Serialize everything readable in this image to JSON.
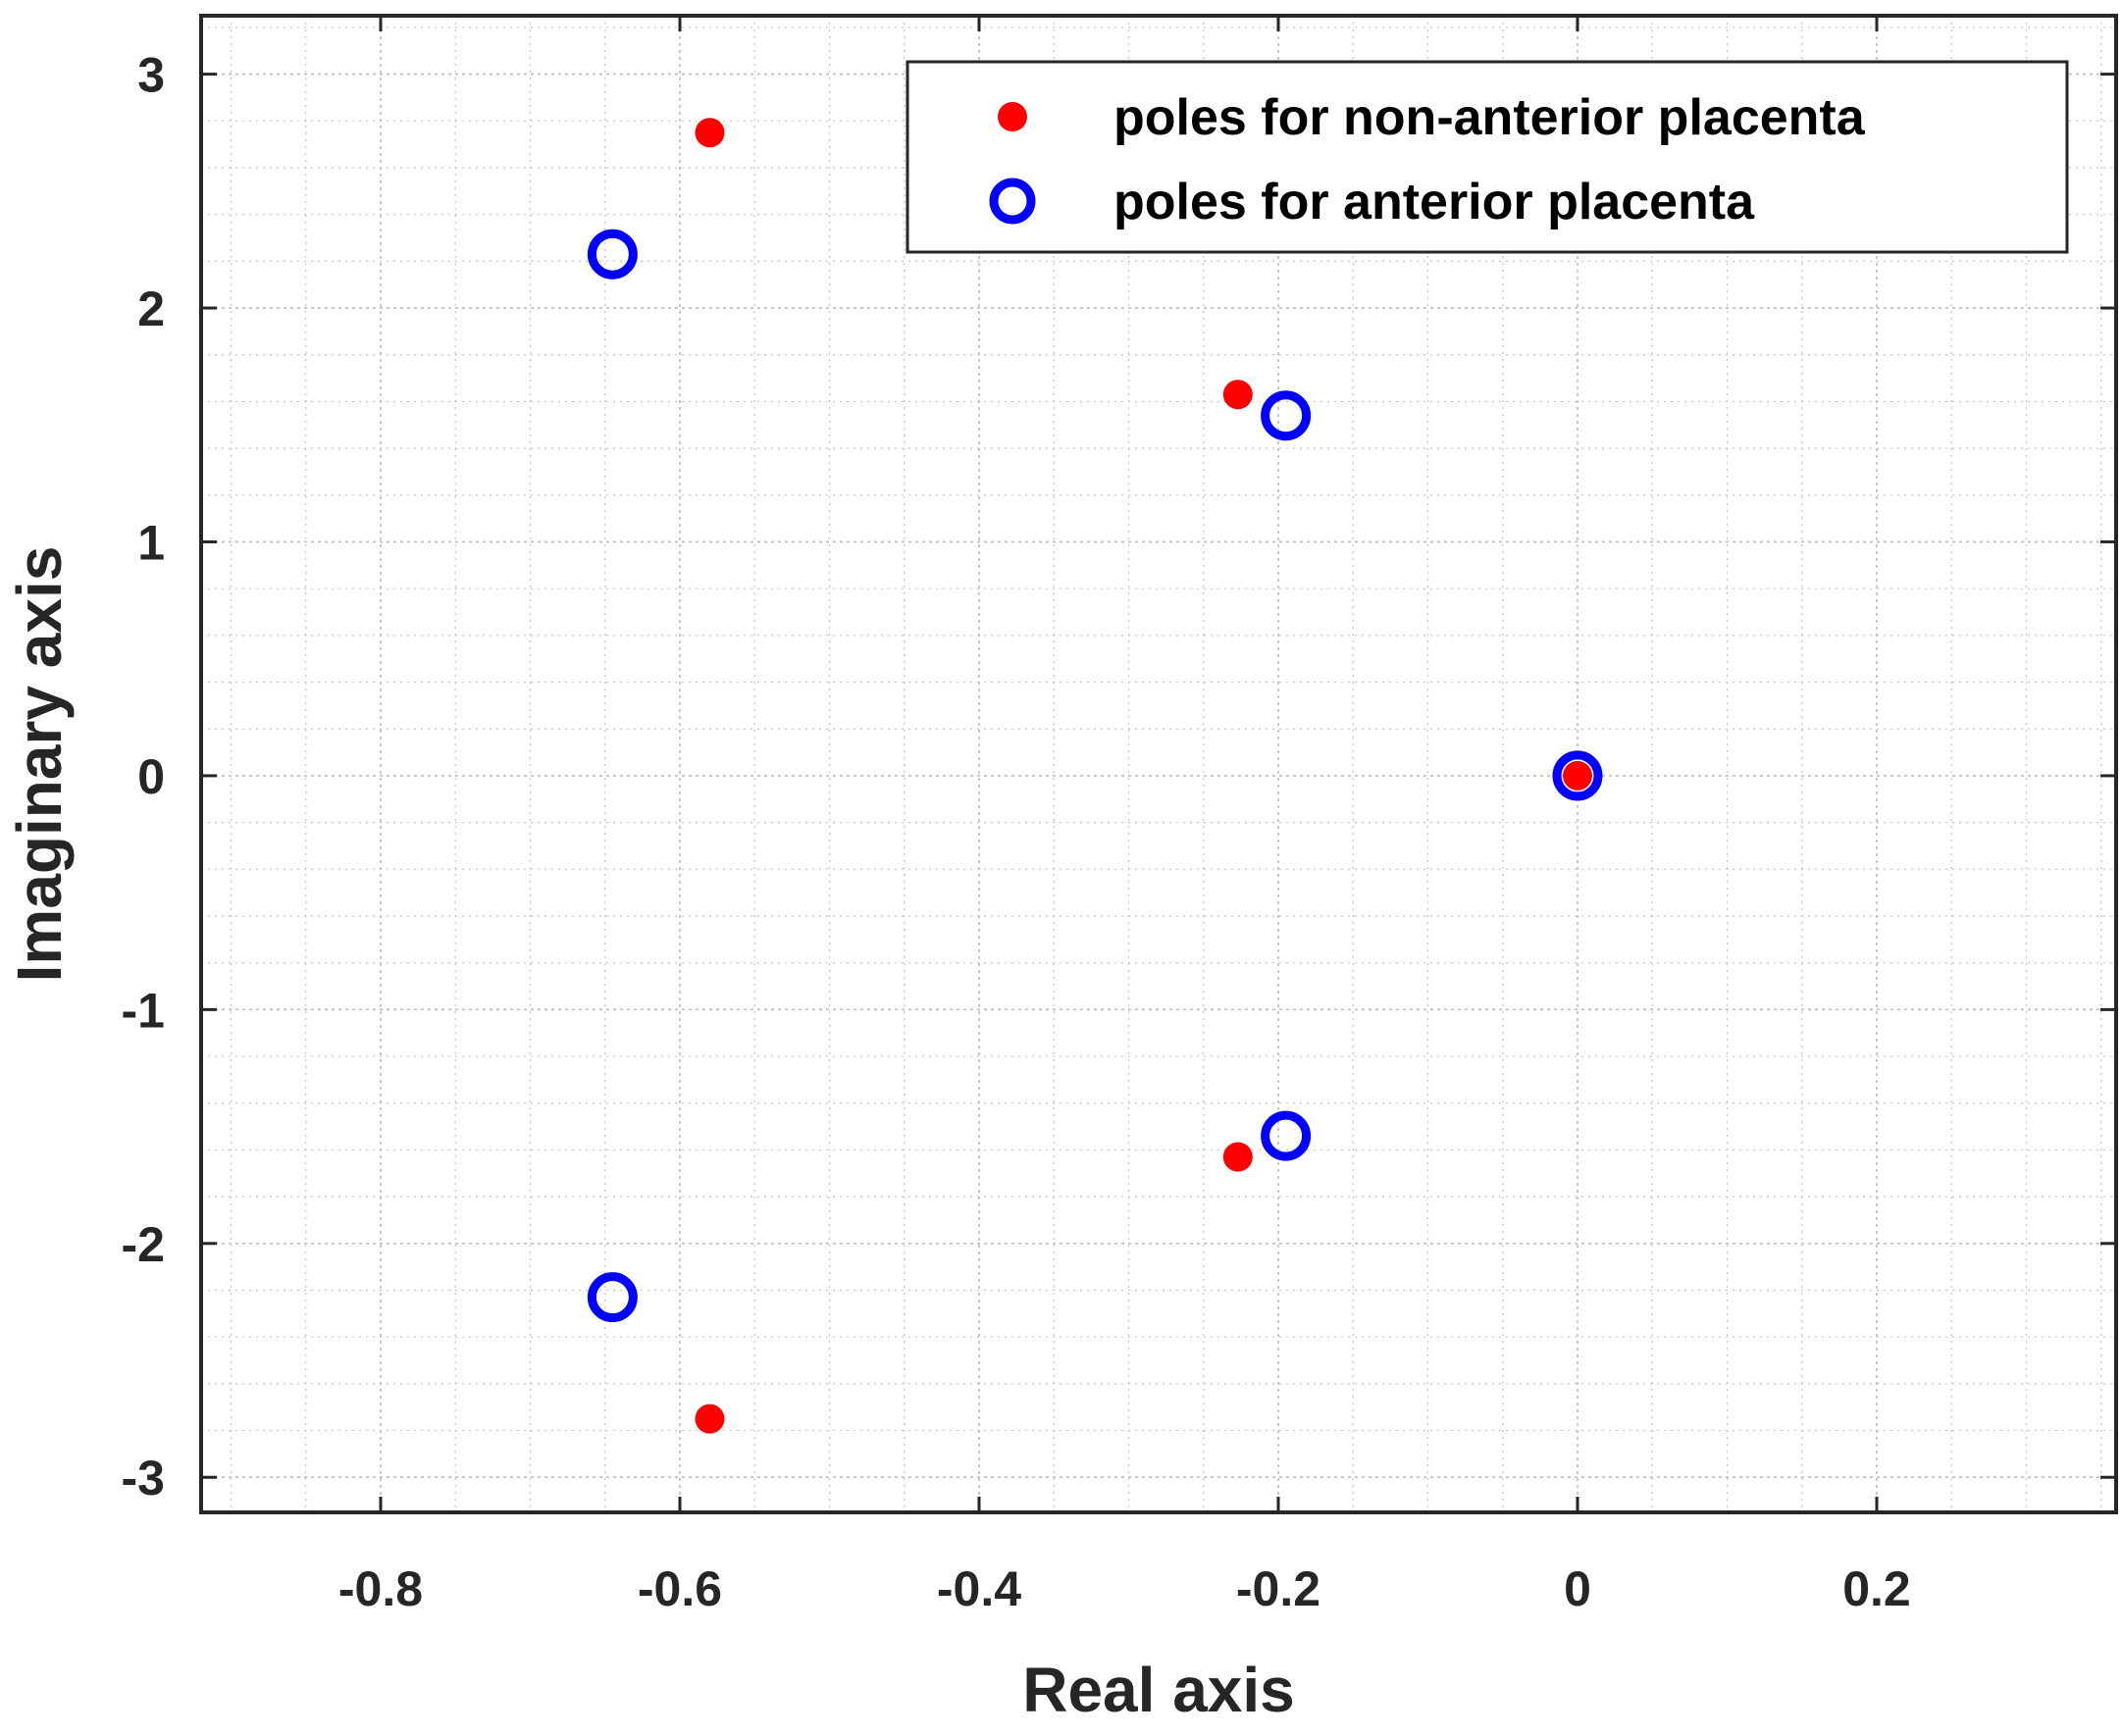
{
  "chart_data": {
    "type": "scatter",
    "title": "",
    "xlabel": "Real axis",
    "ylabel": "Imaginary axis",
    "xlim": [
      -0.92,
      0.36
    ],
    "ylim": [
      -3.15,
      3.25
    ],
    "xticks": [
      -0.8,
      -0.6,
      -0.4,
      -0.2,
      0,
      0.2
    ],
    "xtick_labels": [
      "-0.8",
      "-0.6",
      "-0.4",
      "-0.2",
      "0",
      "0.2"
    ],
    "yticks": [
      -3,
      -2,
      -1,
      0,
      1,
      2,
      3
    ],
    "ytick_labels": [
      "-3",
      "-2",
      "-1",
      "0",
      "1",
      "2",
      "3"
    ],
    "grid": true,
    "minor_grid": true,
    "legend_position": "top-right",
    "series": [
      {
        "name": "poles for non-anterior placenta",
        "marker": "filled-dot",
        "color": "#ff0000",
        "x": [
          -0.58,
          -0.58,
          -0.227,
          -0.227,
          0.0
        ],
        "y": [
          2.75,
          -2.75,
          1.63,
          -1.63,
          0.0
        ]
      },
      {
        "name": "poles for anterior placenta",
        "marker": "open-circle",
        "color": "#0000ff",
        "x": [
          -0.645,
          -0.645,
          -0.195,
          -0.195,
          0.0
        ],
        "y": [
          2.23,
          -2.23,
          1.54,
          -1.54,
          0.0
        ]
      }
    ]
  }
}
